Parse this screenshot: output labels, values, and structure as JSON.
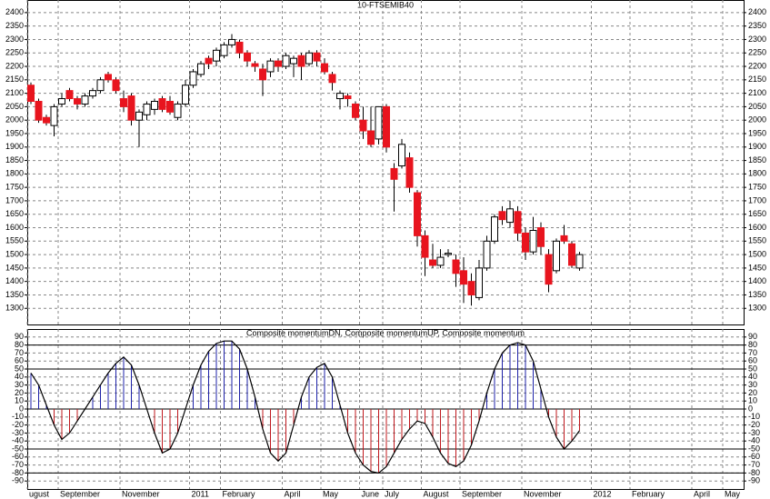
{
  "chart_data": [
    {
      "type": "candlestick",
      "title": "10-FTSEMIB40",
      "categories": [
        "ugust",
        null,
        null,
        null,
        "September",
        null,
        null,
        null,
        null,
        null,
        null,
        null,
        "November",
        null,
        null,
        null,
        null,
        null,
        null,
        null,
        null,
        "2011",
        null,
        null,
        null,
        "February",
        null,
        null,
        null,
        null,
        null,
        null,
        null,
        "April",
        null,
        null,
        null,
        null,
        "May",
        null,
        null,
        null,
        null,
        "June",
        null,
        null,
        "July",
        null,
        null,
        null,
        null,
        "August",
        null,
        null,
        null,
        null,
        "September",
        null,
        null,
        null,
        null,
        null,
        null,
        null,
        "November",
        null,
        null,
        null,
        null,
        null,
        null,
        null,
        null,
        "2012",
        null,
        null,
        null,
        null,
        "February",
        null,
        null,
        null,
        null,
        null,
        null,
        null,
        "April",
        null,
        null,
        null,
        "May",
        null
      ],
      "open": [
        2130,
        2070,
        2010,
        1980,
        2060,
        2110,
        2080,
        2060,
        2090,
        2110,
        2170,
        2150,
        2080,
        2090,
        2000,
        2020,
        2040,
        2080,
        2070,
        2010,
        2060,
        2130,
        2170,
        2230,
        2220,
        2240,
        2280,
        2290,
        2250,
        2210,
        2190,
        2180,
        2220,
        2200,
        2210,
        2240,
        2210,
        2250,
        2210,
        2170,
        2080,
        2090,
        2060,
        2000,
        1960,
        1930,
        2050,
        1820,
        1830,
        1860,
        1730,
        1570,
        1480,
        1460,
        1500,
        1480,
        1440,
        1400,
        1340,
        1450,
        1550,
        1660,
        1620,
        1660,
        1580,
        1510,
        1600,
        1500,
        1440,
        1570,
        1540,
        1450,
        null,
        null,
        null,
        null,
        null,
        null,
        null,
        null,
        null,
        null,
        null,
        null,
        null,
        null,
        null,
        null,
        null,
        null,
        null,
        null
      ],
      "high": [
        2140,
        2080,
        2020,
        2060,
        2100,
        2120,
        2090,
        2100,
        2120,
        2160,
        2180,
        2160,
        2110,
        2100,
        2040,
        2070,
        2080,
        2090,
        2090,
        2070,
        2150,
        2190,
        2220,
        2240,
        2270,
        2290,
        2320,
        2300,
        2260,
        2220,
        2210,
        2230,
        2230,
        2250,
        2240,
        2250,
        2260,
        2260,
        2230,
        2180,
        2110,
        2100,
        2070,
        2050,
        2050,
        2050,
        2060,
        1840,
        1930,
        1880,
        1740,
        1590,
        1540,
        1520,
        1520,
        1500,
        1490,
        1430,
        1480,
        1570,
        1650,
        1680,
        1700,
        1680,
        1600,
        1640,
        1620,
        1520,
        1560,
        1610,
        1550,
        1510,
        null,
        null,
        null,
        null,
        null,
        null,
        null,
        null,
        null,
        null,
        null,
        null,
        null,
        null,
        null,
        null,
        null,
        null,
        null,
        null
      ],
      "low": [
        2060,
        1990,
        1980,
        1940,
        2050,
        2070,
        2040,
        2050,
        2080,
        2100,
        2140,
        2100,
        2030,
        1980,
        1900,
        2000,
        2020,
        2030,
        2020,
        2000,
        2050,
        2120,
        2160,
        2190,
        2200,
        2230,
        2270,
        2230,
        2200,
        2180,
        2090,
        2160,
        2180,
        2190,
        2160,
        2150,
        2200,
        2200,
        2170,
        2110,
        2040,
        2050,
        2000,
        1930,
        1900,
        1910,
        1880,
        1660,
        1820,
        1730,
        1530,
        1420,
        1450,
        1450,
        1490,
        1380,
        1320,
        1310,
        1330,
        1440,
        1540,
        1610,
        1600,
        1550,
        1480,
        1500,
        1500,
        1360,
        1430,
        1540,
        1450,
        1440,
        null,
        null,
        null,
        null,
        null,
        null,
        null,
        null,
        null,
        null,
        null,
        null,
        null,
        null,
        null,
        null,
        null,
        null,
        null,
        null
      ],
      "close": [
        2070,
        2000,
        1990,
        2050,
        2080,
        2080,
        2060,
        2090,
        2110,
        2150,
        2150,
        2110,
        2050,
        2000,
        2030,
        2060,
        2070,
        2040,
        2030,
        2060,
        2130,
        2180,
        2210,
        2210,
        2260,
        2280,
        2300,
        2250,
        2220,
        2200,
        2150,
        2220,
        2200,
        2240,
        2230,
        2200,
        2250,
        2220,
        2180,
        2140,
        2100,
        2080,
        2010,
        1960,
        1910,
        2050,
        1900,
        1780,
        1910,
        1750,
        1570,
        1490,
        1460,
        1490,
        1505,
        1430,
        1390,
        1350,
        1450,
        1550,
        1640,
        1630,
        1670,
        1580,
        1510,
        1590,
        1530,
        1390,
        1550,
        1550,
        1460,
        1500,
        null,
        null,
        null,
        null,
        null,
        null,
        null,
        null,
        null,
        null,
        null,
        null,
        null,
        null,
        null,
        null,
        null,
        null,
        null,
        null
      ],
      "up_color": "#ffffff",
      "down_color": "#e8141e",
      "ylim": [
        1240,
        2430
      ],
      "yticks": [
        1300,
        1350,
        1400,
        1450,
        1500,
        1550,
        1600,
        1650,
        1700,
        1750,
        1800,
        1850,
        1900,
        1950,
        2000,
        2050,
        2100,
        2150,
        2200,
        2250,
        2300,
        2350,
        2400
      ],
      "grid": true
    },
    {
      "type": "oscillator",
      "title": "Composite momentumDN, Composite momentumUP, Composite momentum",
      "values": [
        45,
        30,
        5,
        -20,
        -38,
        -30,
        -15,
        0,
        15,
        30,
        45,
        57,
        65,
        55,
        30,
        0,
        -30,
        -55,
        -50,
        -30,
        0,
        30,
        55,
        72,
        82,
        85,
        85,
        75,
        50,
        15,
        -25,
        -55,
        -65,
        -55,
        -20,
        15,
        40,
        52,
        57,
        40,
        5,
        -30,
        -55,
        -70,
        -78,
        -80,
        -72,
        -55,
        -38,
        -25,
        -15,
        -18,
        -35,
        -55,
        -68,
        -72,
        -65,
        -45,
        -15,
        20,
        50,
        70,
        80,
        83,
        80,
        60,
        25,
        -10,
        -35,
        -50,
        -40,
        -27,
        null,
        null,
        null,
        null,
        null,
        null,
        null,
        null,
        null,
        null,
        null,
        null,
        null,
        null,
        null,
        null,
        null,
        null,
        null,
        null
      ],
      "up_color": "#1e22a8",
      "down_color": "#c0181e",
      "line_color": "#000000",
      "reference_lines": [
        80,
        50,
        0,
        -50,
        -80
      ],
      "ylim": [
        -100,
        100
      ],
      "yticks": [
        -90,
        -80,
        -70,
        -60,
        -50,
        -40,
        -30,
        -20,
        -10,
        0,
        10,
        20,
        30,
        40,
        50,
        60,
        70,
        80,
        90
      ],
      "grid": true
    }
  ]
}
